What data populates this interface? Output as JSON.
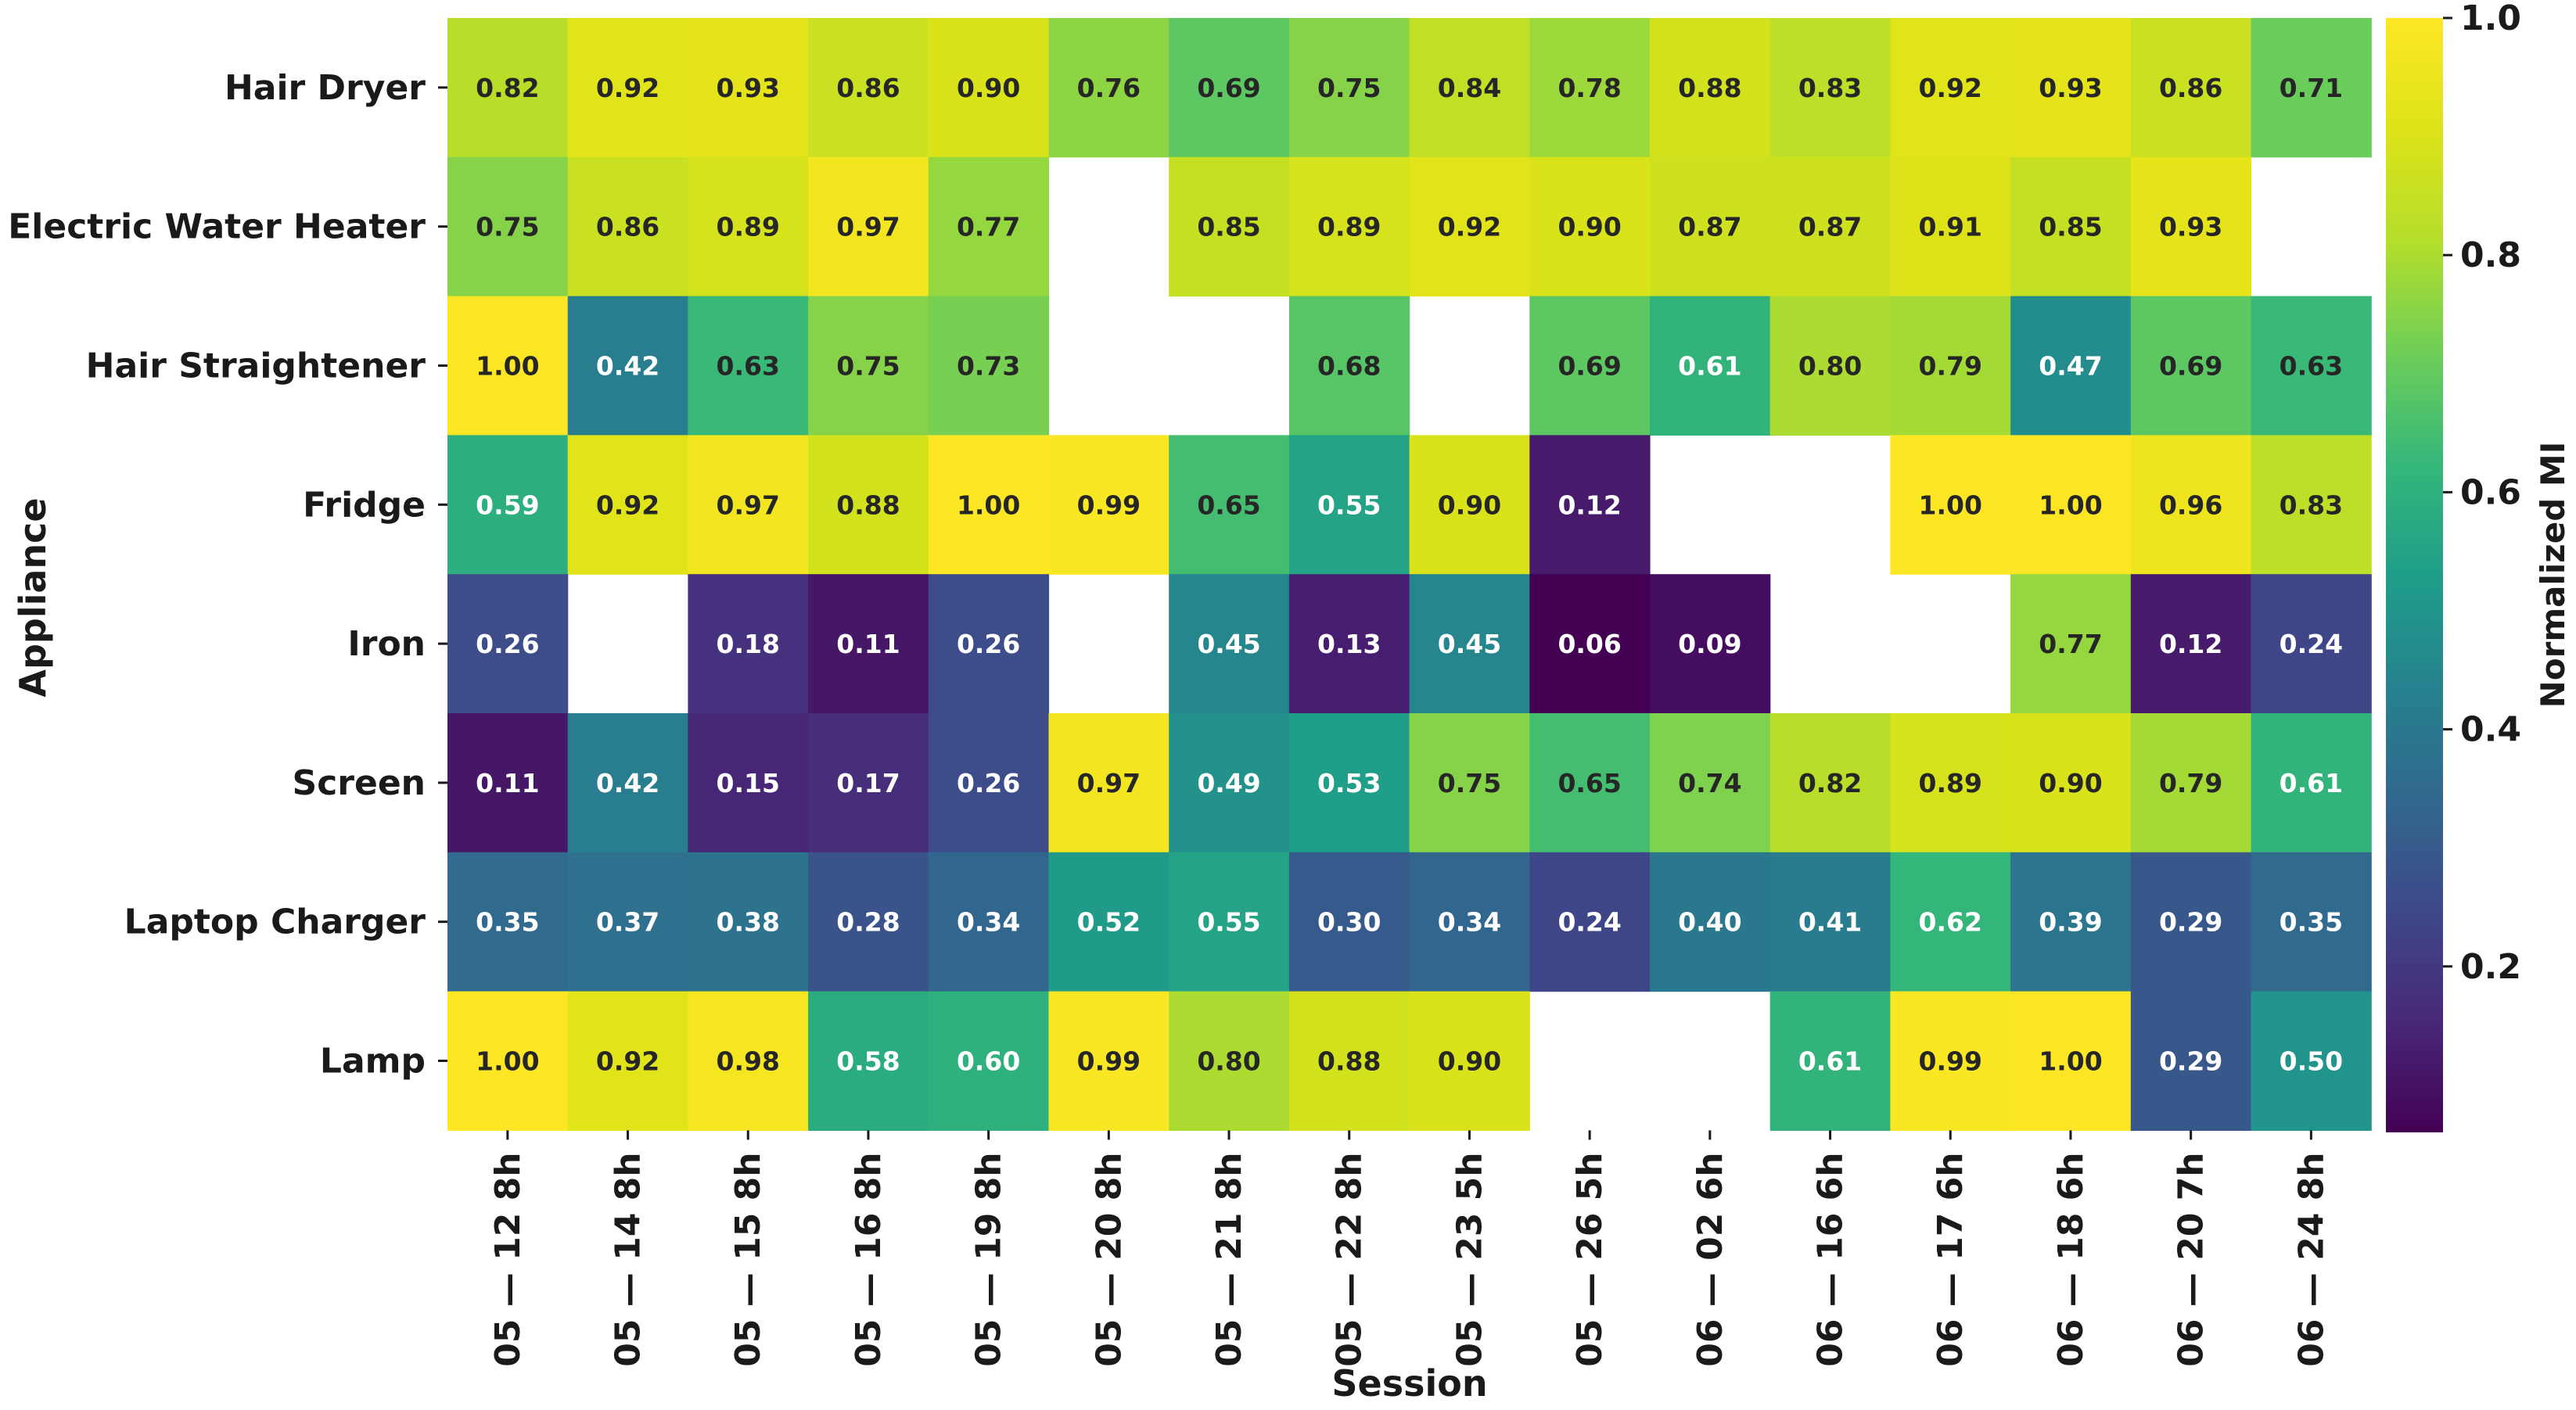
{
  "chart_data": {
    "type": "heatmap",
    "xlabel": "Session",
    "ylabel": "Appliance",
    "colorbar": {
      "label": "Normalized MI",
      "range": [
        0.06,
        1.0
      ],
      "ticks": [
        "0.2",
        "0.4",
        "0.6",
        "0.8",
        "1.0"
      ],
      "colormap": "viridis"
    },
    "rows": [
      "Hair Dryer",
      "Electric Water Heater",
      "Hair Straightener",
      "Fridge",
      "Iron",
      "Screen",
      "Laptop Charger",
      "Lamp"
    ],
    "columns": [
      "05 — 12 8h",
      "05 — 14 8h",
      "05 — 15 8h",
      "05 — 16 8h",
      "05 — 19 8h",
      "05 — 20 8h",
      "05 — 21 8h",
      "05 — 22 8h",
      "05 — 23 5h",
      "05 — 26 5h",
      "06 — 02 6h",
      "06 — 16 6h",
      "06 — 17 6h",
      "06 — 18 6h",
      "06 — 20 7h",
      "06 — 24 8h"
    ],
    "values": [
      [
        0.82,
        0.92,
        0.93,
        0.86,
        0.9,
        0.76,
        0.69,
        0.75,
        0.84,
        0.78,
        0.88,
        0.83,
        0.92,
        0.93,
        0.86,
        0.71
      ],
      [
        0.75,
        0.86,
        0.89,
        0.97,
        0.77,
        null,
        0.85,
        0.89,
        0.92,
        0.9,
        0.87,
        0.87,
        0.91,
        0.85,
        0.93,
        null
      ],
      [
        1.0,
        0.42,
        0.63,
        0.75,
        0.73,
        null,
        null,
        0.68,
        null,
        0.69,
        0.61,
        0.8,
        0.79,
        0.47,
        0.69,
        0.63
      ],
      [
        0.59,
        0.92,
        0.97,
        0.88,
        1.0,
        0.99,
        0.65,
        0.55,
        0.9,
        0.12,
        null,
        null,
        1.0,
        1.0,
        0.96,
        0.83
      ],
      [
        0.26,
        null,
        0.18,
        0.11,
        0.26,
        null,
        0.45,
        0.13,
        0.45,
        0.06,
        0.09,
        null,
        null,
        0.77,
        0.12,
        0.24
      ],
      [
        0.11,
        0.42,
        0.15,
        0.17,
        0.26,
        0.97,
        0.49,
        0.53,
        0.75,
        0.65,
        0.74,
        0.82,
        0.89,
        0.9,
        0.79,
        0.61
      ],
      [
        0.35,
        0.37,
        0.38,
        0.28,
        0.34,
        0.52,
        0.55,
        0.3,
        0.34,
        0.24,
        0.4,
        0.41,
        0.62,
        0.39,
        0.29,
        0.35
      ],
      [
        1.0,
        0.92,
        0.98,
        0.58,
        0.6,
        0.99,
        0.8,
        0.88,
        0.9,
        null,
        null,
        0.61,
        0.99,
        1.0,
        0.29,
        0.5
      ]
    ],
    "annotation_format": "2 decimals"
  }
}
